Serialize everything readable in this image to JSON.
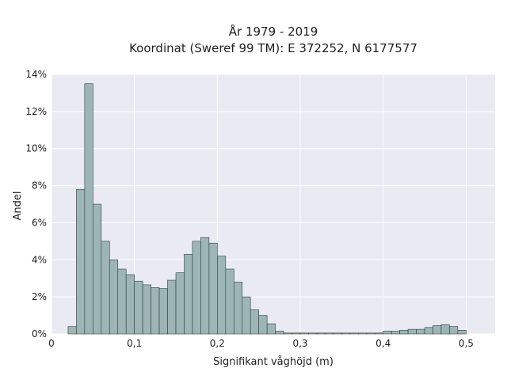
{
  "chart_data": {
    "type": "bar",
    "title": "År 1979 - 2019",
    "subtitle": "Koordinat (Sweref 99 TM): E 372252, N 6177577",
    "xlabel": "Signifikant våghöjd (m)",
    "ylabel": "Andel",
    "xlim": [
      0,
      0.535
    ],
    "ylim": [
      0,
      14
    ],
    "xticks": [
      0,
      0.1,
      0.2,
      0.3,
      0.4,
      0.5
    ],
    "xtick_labels": [
      "0",
      "0,1",
      "0,2",
      "0,3",
      "0,4",
      "0,5"
    ],
    "yticks": [
      0,
      2,
      4,
      6,
      8,
      10,
      12,
      14
    ],
    "ytick_labels": [
      "0%",
      "2%",
      "4%",
      "6%",
      "8%",
      "10%",
      "12%",
      "14%"
    ],
    "grid": true,
    "colors": {
      "bar_fill": "#9db5b5",
      "bar_edge": "#2f3f3f",
      "plot_bg": "#eaeaf2",
      "grid": "#ffffff"
    },
    "bin_width": 0.01,
    "bins_left": [
      0.02,
      0.03,
      0.04,
      0.05,
      0.06,
      0.07,
      0.08,
      0.09,
      0.1,
      0.11,
      0.12,
      0.13,
      0.14,
      0.15,
      0.16,
      0.17,
      0.18,
      0.19,
      0.2,
      0.21,
      0.22,
      0.23,
      0.24,
      0.25,
      0.26,
      0.27,
      0.28,
      0.29,
      0.3,
      0.31,
      0.32,
      0.33,
      0.34,
      0.35,
      0.36,
      0.37,
      0.38,
      0.39,
      0.4,
      0.41,
      0.42,
      0.43,
      0.44,
      0.45,
      0.46,
      0.47,
      0.48,
      0.49
    ],
    "values": [
      0.4,
      7.8,
      13.5,
      7.0,
      5.0,
      4.0,
      3.5,
      3.2,
      2.85,
      2.65,
      2.5,
      2.45,
      2.9,
      3.3,
      4.3,
      5.0,
      5.2,
      4.9,
      4.2,
      3.5,
      2.8,
      2.0,
      1.3,
      1.0,
      0.55,
      0.15,
      0.05,
      0.05,
      0.05,
      0.05,
      0.05,
      0.05,
      0.05,
      0.05,
      0.05,
      0.05,
      0.05,
      0.05,
      0.15,
      0.15,
      0.2,
      0.25,
      0.25,
      0.35,
      0.45,
      0.5,
      0.4,
      0.2
    ]
  }
}
